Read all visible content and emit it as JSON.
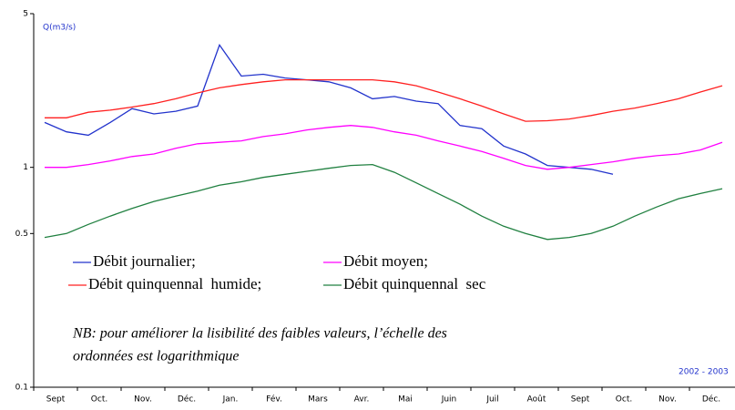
{
  "chart_data": {
    "type": "line",
    "y_label": "Q(m3/s)",
    "note_lines": [
      "NB: pour améliorer la lisibilité des faibles valeurs, l’échelle des",
      "ordonnées est logarithmique"
    ],
    "period": "2002 - 2003",
    "log_scale": true,
    "ylim": [
      0.1,
      5
    ],
    "yticks": [
      0.1,
      0.5,
      1,
      5
    ],
    "categories": [
      "Sept",
      null,
      "Oct.",
      null,
      "Nov.",
      null,
      "Déc.",
      null,
      "Jan.",
      null,
      "Fév.",
      null,
      "Mars",
      null,
      "Avr.",
      null,
      "Mai",
      null,
      "Juin",
      null,
      "Juil",
      null,
      "Août",
      null,
      "Sept",
      null,
      "Oct.",
      null,
      "Nov.",
      null,
      "Déc.",
      null
    ],
    "series": [
      {
        "name": "Débit journalier;",
        "color": "#2233cc",
        "values": [
          1.6,
          1.45,
          1.4,
          1.6,
          1.85,
          1.75,
          1.8,
          1.9,
          3.6,
          2.6,
          2.65,
          2.55,
          2.5,
          2.45,
          2.3,
          2.05,
          2.1,
          2.0,
          1.95,
          1.55,
          1.5,
          1.25,
          1.15,
          1.02,
          1.0,
          0.98,
          0.93,
          null,
          null,
          null,
          null,
          null
        ]
      },
      {
        "name": "Débit moyen;",
        "color": "#ff00ff",
        "values": [
          1.0,
          1.0,
          1.03,
          1.07,
          1.12,
          1.15,
          1.22,
          1.28,
          1.3,
          1.32,
          1.38,
          1.42,
          1.48,
          1.52,
          1.55,
          1.52,
          1.45,
          1.4,
          1.32,
          1.25,
          1.18,
          1.1,
          1.02,
          0.98,
          1.0,
          1.03,
          1.06,
          1.1,
          1.13,
          1.15,
          1.2,
          1.3
        ]
      },
      {
        "name": "Débit quinquennal  humide;",
        "color": "#ff2020",
        "values": [
          1.68,
          1.68,
          1.78,
          1.82,
          1.88,
          1.95,
          2.05,
          2.18,
          2.3,
          2.38,
          2.45,
          2.5,
          2.5,
          2.5,
          2.5,
          2.5,
          2.45,
          2.35,
          2.2,
          2.05,
          1.9,
          1.75,
          1.62,
          1.63,
          1.66,
          1.72,
          1.8,
          1.86,
          1.95,
          2.05,
          2.2,
          2.35
        ]
      },
      {
        "name": "Débit quinquennal  sec",
        "color": "#208040",
        "values": [
          0.48,
          0.5,
          0.55,
          0.6,
          0.65,
          0.7,
          0.74,
          0.78,
          0.83,
          0.86,
          0.9,
          0.93,
          0.96,
          0.99,
          1.02,
          1.03,
          0.95,
          0.85,
          0.76,
          0.68,
          0.6,
          0.54,
          0.5,
          0.47,
          0.48,
          0.5,
          0.54,
          0.6,
          0.66,
          0.72,
          0.76,
          0.8
        ]
      }
    ]
  }
}
